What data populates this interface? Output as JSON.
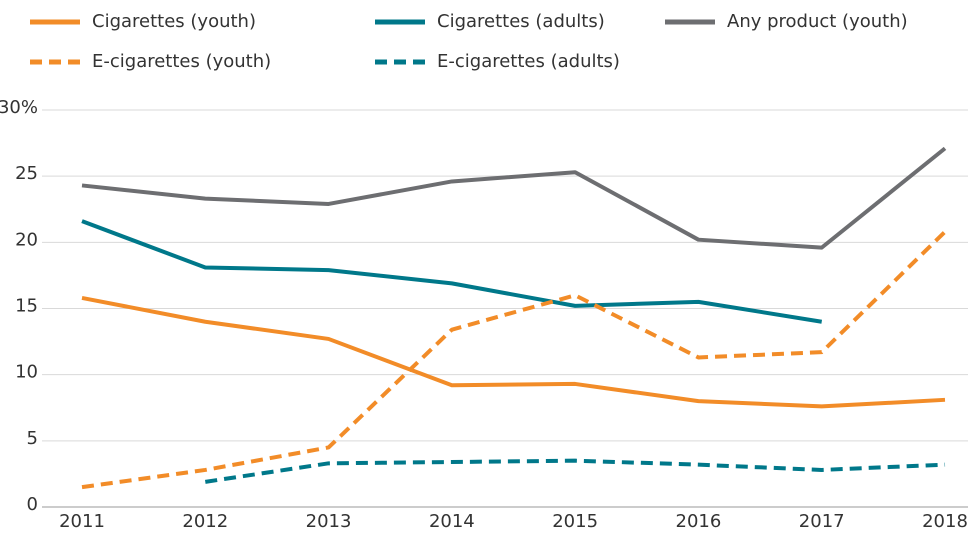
{
  "chart_data": {
    "type": "line",
    "categories": [
      "2011",
      "2012",
      "2013",
      "2014",
      "2015",
      "2016",
      "2017",
      "2018"
    ],
    "series": [
      {
        "name": "Cigarettes (youth)",
        "color": "#f28c28",
        "line_style": "solid",
        "values": [
          15.8,
          14.0,
          12.7,
          9.2,
          9.3,
          8.0,
          7.6,
          8.1
        ]
      },
      {
        "name": "Cigarettes (adults)",
        "color": "#00788a",
        "line_style": "solid",
        "values": [
          21.6,
          18.1,
          17.9,
          16.9,
          15.2,
          15.5,
          14.0,
          null
        ]
      },
      {
        "name": "Any product (youth)",
        "color": "#6d6e71",
        "line_style": "solid",
        "values": [
          24.3,
          23.3,
          22.9,
          24.6,
          25.3,
          20.2,
          19.6,
          27.1
        ]
      },
      {
        "name": "E-cigarettes (youth)",
        "color": "#f28c28",
        "line_style": "dashed",
        "values": [
          1.5,
          2.8,
          4.5,
          13.4,
          16.0,
          11.3,
          11.7,
          20.8
        ]
      },
      {
        "name": "E-cigarettes (adults)",
        "color": "#00788a",
        "line_style": "dashed",
        "values": [
          null,
          1.9,
          3.3,
          3.4,
          3.5,
          3.2,
          2.8,
          3.2
        ]
      }
    ],
    "ylim": [
      0,
      30
    ],
    "yticks": [
      0,
      5,
      10,
      15,
      20,
      25,
      {
        "value": 30,
        "label": "30%"
      }
    ],
    "grid": true
  }
}
